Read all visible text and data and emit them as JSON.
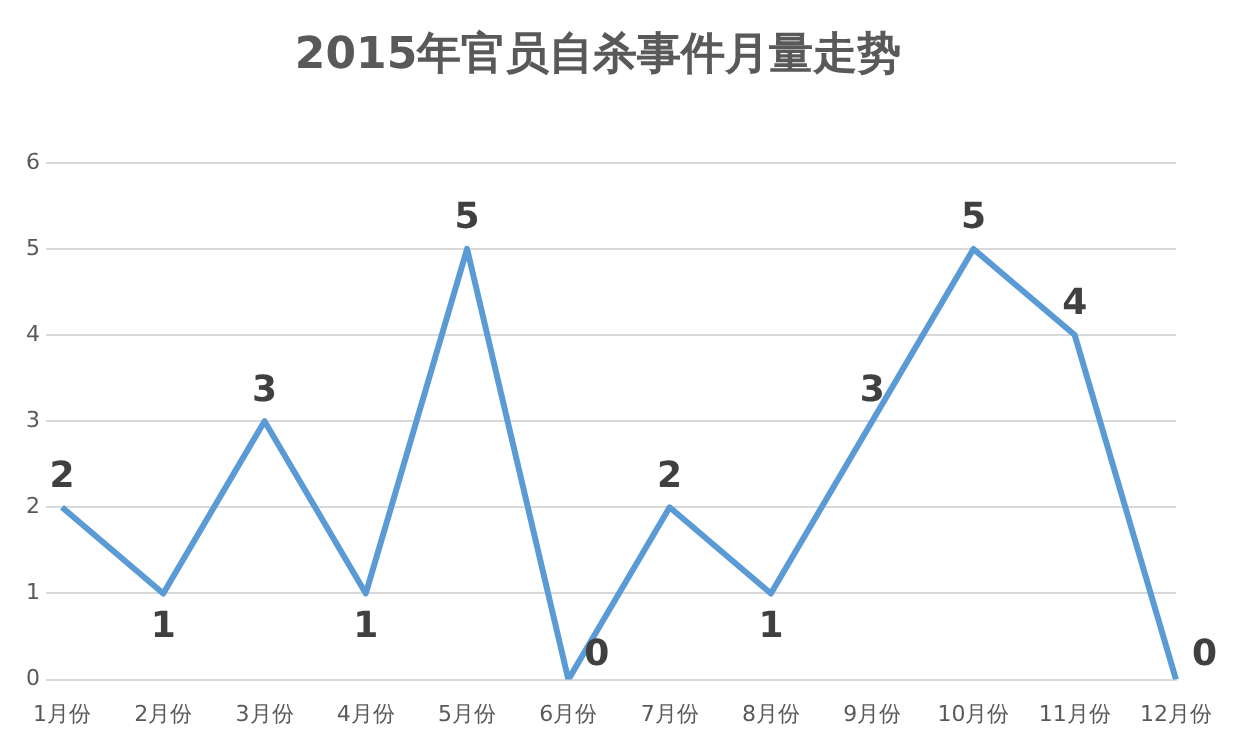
{
  "chart_data": {
    "type": "line",
    "title": "2015年官员自杀事件月量走势",
    "categories": [
      "1月份",
      "2月份",
      "3月份",
      "4月份",
      "5月份",
      "6月份",
      "7月份",
      "8月份",
      "9月份",
      "10月份",
      "11月份",
      "12月份"
    ],
    "values": [
      2,
      1,
      3,
      1,
      5,
      0,
      2,
      1,
      3,
      5,
      4,
      0
    ],
    "color": "#5b9bd5",
    "ylim": [
      0,
      6
    ],
    "yticks": [
      0,
      1,
      2,
      3,
      4,
      5,
      6
    ],
    "grid": "y",
    "legend": false,
    "marker": "none",
    "line_style": "solid",
    "data_labels": true
  }
}
